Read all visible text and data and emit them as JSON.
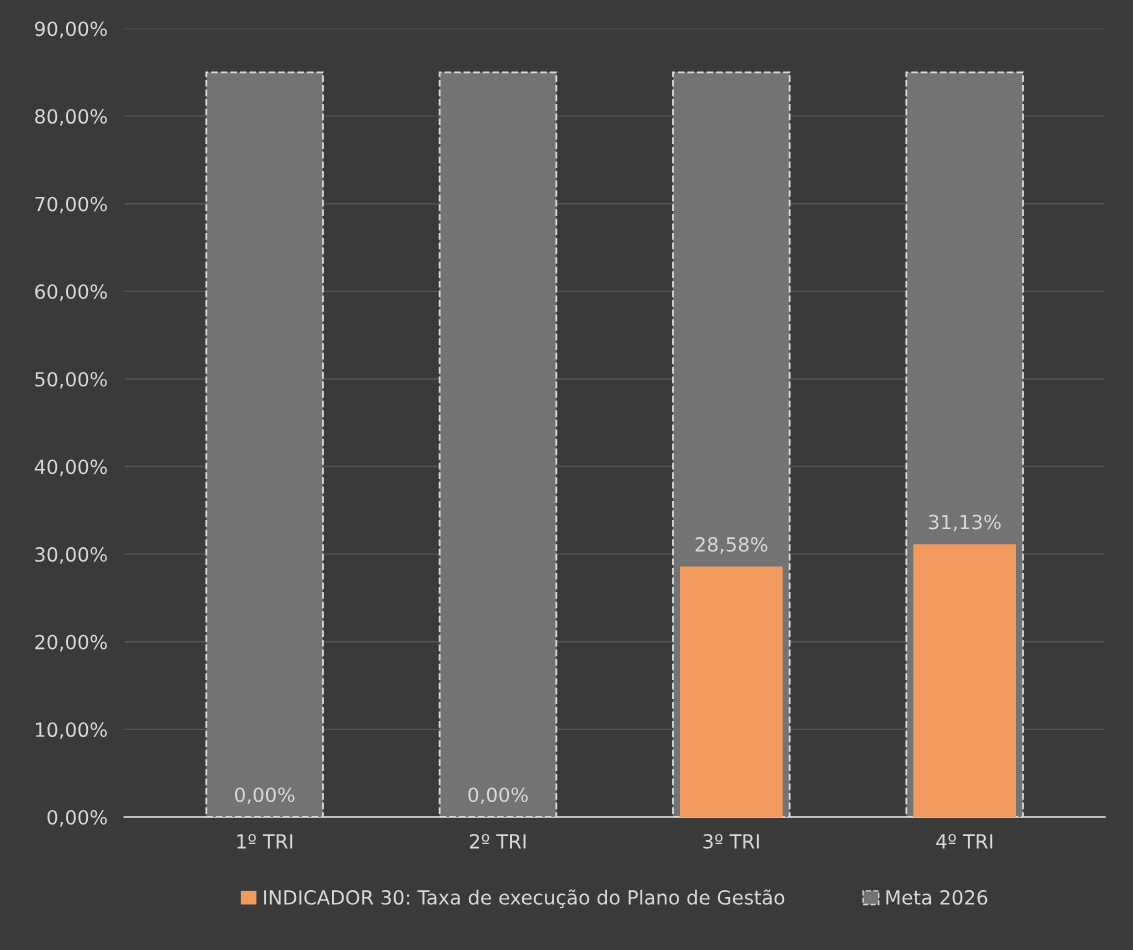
{
  "chart_data": {
    "type": "bar",
    "categories": [
      "1º TRI",
      "2º TRI",
      "3º TRI",
      "4º TRI"
    ],
    "series": [
      {
        "name": "INDICADOR 30: Taxa de execução do Plano de Gestão",
        "color": "#f09a5f",
        "values": [
          0,
          0,
          28.58,
          31.13
        ],
        "value_labels": [
          "0,00%",
          "0,00%",
          "28,58%",
          "31,13%"
        ]
      },
      {
        "name": "Meta 2026",
        "color": "#737373",
        "values": [
          85,
          85,
          85,
          85
        ],
        "line_style": "dashed"
      }
    ],
    "ylim": [
      0,
      90
    ],
    "yticks": [
      {
        "value": 0,
        "label": "0,00%"
      },
      {
        "value": 10,
        "label": "10,00%"
      },
      {
        "value": 20,
        "label": "20,00%"
      },
      {
        "value": 30,
        "label": "30,00%"
      },
      {
        "value": 40,
        "label": "40,00%"
      },
      {
        "value": 50,
        "label": "50,00%"
      },
      {
        "value": 60,
        "label": "60,00%"
      },
      {
        "value": 70,
        "label": "70,00%"
      },
      {
        "value": 80,
        "label": "80,00%"
      },
      {
        "value": 90,
        "label": "90,00%"
      }
    ],
    "grid": "y",
    "legend": "bottom"
  }
}
